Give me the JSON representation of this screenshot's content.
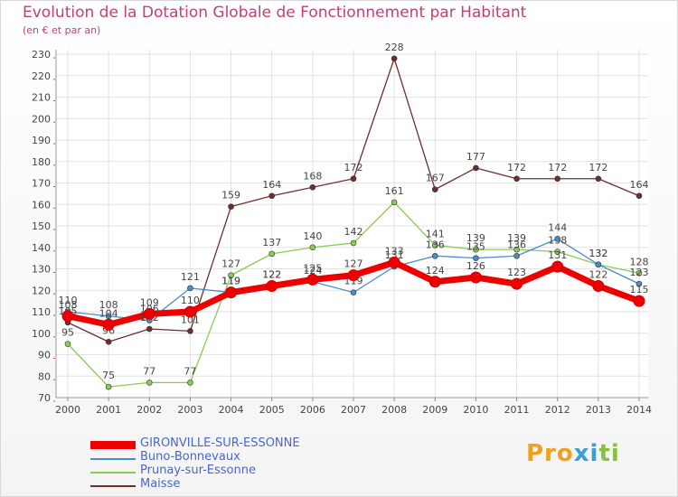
{
  "title": "Evolution de la Dotation Globale de Fonctionnement par Habitant",
  "subtitle": "(en € et par an)",
  "logo": {
    "text": "Proxiti",
    "parts": [
      "Pr",
      "o",
      "x",
      "i",
      "t",
      "i"
    ]
  },
  "chart_data": {
    "type": "line",
    "title": "Evolution de la Dotation Globale de Fonctionnement par Habitant",
    "subtitle": "(en € et par an)",
    "xlabel": "",
    "ylabel": "",
    "ylim": [
      70,
      230
    ],
    "yticks": [
      70,
      80,
      90,
      100,
      110,
      120,
      130,
      140,
      150,
      160,
      170,
      180,
      190,
      200,
      210,
      220,
      230
    ],
    "grid": true,
    "legend_position": "bottom-left",
    "categories": [
      "2000",
      "2001",
      "2002",
      "2003",
      "2004",
      "2005",
      "2006",
      "2007",
      "2008",
      "2009",
      "2010",
      "2011",
      "2012",
      "2013",
      "2014"
    ],
    "series": [
      {
        "name": "Maisse",
        "color": "#6b2f2f",
        "values": [
          105,
          96,
          102,
          101,
          159,
          164,
          168,
          172,
          228,
          167,
          177,
          172,
          172,
          172,
          164
        ]
      },
      {
        "name": "Prunay-sur-Essonne",
        "color": "#88cc55",
        "values": [
          95,
          75,
          77,
          77,
          127,
          137,
          140,
          142,
          161,
          141,
          139,
          139,
          138,
          132,
          128
        ]
      },
      {
        "name": "Buno-Bonnevaux",
        "color": "#4a8cc8",
        "values": [
          110,
          108,
          106,
          121,
          119,
          122,
          124,
          119,
          131,
          136,
          135,
          136,
          144,
          132,
          123
        ]
      },
      {
        "name": "GIRONVILLE-SUR-ESSONNE",
        "color": "#ee0000",
        "values": [
          108,
          104,
          109,
          110,
          119,
          122,
          125,
          127,
          133,
          124,
          126,
          123,
          131,
          122,
          115
        ]
      }
    ]
  }
}
